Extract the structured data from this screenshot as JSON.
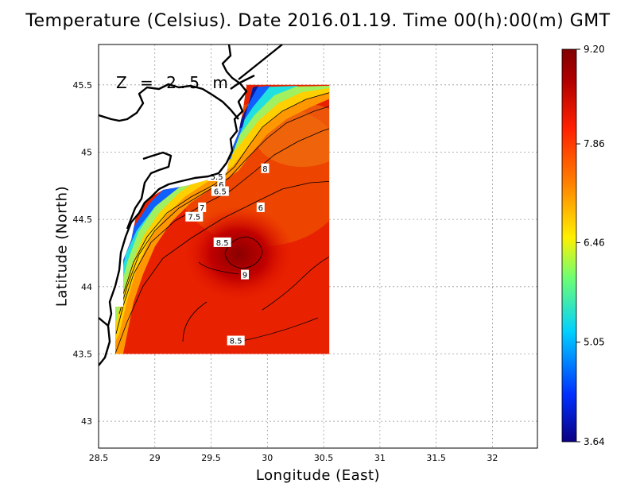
{
  "title": "Temperature (Celsius). Date 2016.01.19. Time 00(h):00(m)  GMT",
  "xlabel": "Longitude (East)",
  "ylabel": "Latitude (North)",
  "depth_label": "Z = 2.5 m",
  "x_ticks": [
    "28.5",
    "29",
    "29.5",
    "30",
    "30.5",
    "31",
    "31.5",
    "32"
  ],
  "y_ticks": [
    "43",
    "43.5",
    "44",
    "44.5",
    "45",
    "45.5"
  ],
  "colorbar": {
    "ticks": [
      "9.20",
      "7.86",
      "6.46",
      "5.05",
      "3.64"
    ],
    "min": 3.64,
    "max": 9.2,
    "colors": [
      "#0a0082",
      "#0030ff",
      "#00d0ff",
      "#70ff70",
      "#fff000",
      "#ff8000",
      "#ff2000",
      "#b00000",
      "#820000"
    ]
  },
  "contour_labels": [
    "5.5",
    "6",
    "6.5",
    "7",
    "7.5",
    "8",
    "6",
    "8.5",
    "9",
    "8.5"
  ],
  "chart_data": {
    "type": "heatmap",
    "title": "Temperature (Celsius). Date 2016.01.19. Time 00(h):00(m)  GMT",
    "xlabel": "Longitude (East)",
    "ylabel": "Latitude (North)",
    "xlim": [
      28.5,
      32.4
    ],
    "ylim": [
      42.8,
      45.8
    ],
    "value_range": [
      3.64,
      9.2
    ],
    "grid": true,
    "legend": "right colorbar",
    "data_region": {
      "lon": [
        28.65,
        30.55
      ],
      "lat": [
        43.5,
        45.5
      ]
    },
    "contour_levels": [
      5.5,
      6,
      6.5,
      7,
      7.5,
      8,
      8.5,
      9
    ],
    "warm_core": {
      "lon": 29.8,
      "lat": 44.3,
      "value": 9.0
    }
  }
}
